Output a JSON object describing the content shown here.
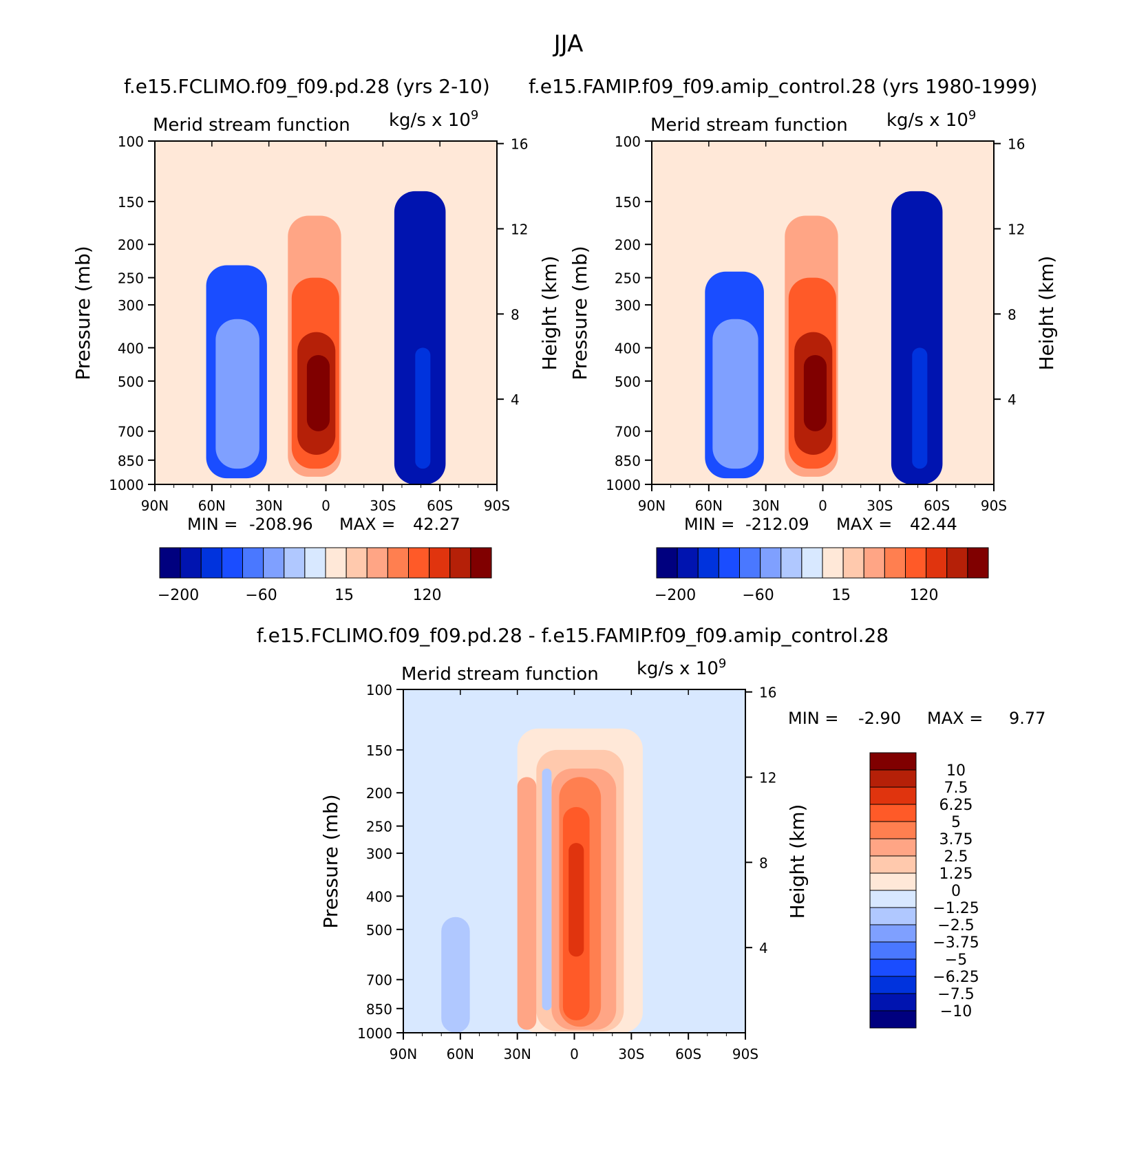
{
  "figure": {
    "title": "JJA",
    "min_label": "MIN =",
    "max_label": "MAX ="
  },
  "colors": {
    "main_scale": [
      "#00007f",
      "#0014b0",
      "#0033dd",
      "#1a4dff",
      "#4a78ff",
      "#7fa0ff",
      "#b0c8ff",
      "#d8e8ff",
      "#ffe8d8",
      "#ffc9ad",
      "#ffa585",
      "#ff7f50",
      "#ff5a28",
      "#e0340e",
      "#b52008",
      "#800000"
    ],
    "diff_scale": [
      "#00007f",
      "#0014b0",
      "#0033dd",
      "#1a4dff",
      "#4a78ff",
      "#7fa0ff",
      "#b0c8ff",
      "#d8e8ff",
      "#ffe8d8",
      "#ffc9ad",
      "#ffa585",
      "#ff7f50",
      "#ff5a28",
      "#e0340e",
      "#b52008",
      "#800000"
    ]
  },
  "chart_data": [
    {
      "type": "heatmap",
      "name": "control",
      "title": "f.e15.FCLIMO.f09_f09.pd.28 (yrs 2-10)",
      "subtitle": "Merid stream function",
      "units": "kg/s x 10",
      "units_exp": "9",
      "xlabel": "",
      "ylabel": "Pressure (mb)",
      "ylabel_right": "Height (km)",
      "x_ticks": [
        "90N",
        "60N",
        "30N",
        "0",
        "30S",
        "60S",
        "90S"
      ],
      "y_ticks": [
        "100",
        "150",
        "200",
        "250",
        "300",
        "400",
        "500",
        "700",
        "850",
        "1000"
      ],
      "y_right_ticks": [
        "16",
        "12",
        "8",
        "4"
      ],
      "xlim": [
        90,
        -90
      ],
      "ylim": [
        1000,
        100
      ],
      "min": "-208.96",
      "max": "42.27",
      "colorbar_labels": [
        "-200",
        "-60",
        "15",
        "120"
      ],
      "cells": [
        {
          "lat_range": [
            -10,
            22
          ],
          "p_range": [
            130,
            980
          ],
          "level": 8
        },
        {
          "lat_range": [
            -8,
            20
          ],
          "p_range": [
            165,
            950
          ],
          "level": 10
        },
        {
          "lat_range": [
            -7,
            18
          ],
          "p_range": [
            250,
            900
          ],
          "level": 12
        },
        {
          "lat_range": [
            -5,
            15
          ],
          "p_range": [
            360,
            820
          ],
          "level": 14
        },
        {
          "lat_range": [
            -2,
            10
          ],
          "p_range": [
            420,
            700
          ],
          "level": 15
        },
        {
          "lat_range": [
            31,
            63
          ],
          "p_range": [
            230,
            960
          ],
          "level": 3
        },
        {
          "lat_range": [
            35,
            58
          ],
          "p_range": [
            330,
            900
          ],
          "level": 5
        },
        {
          "lat_range": [
            -63,
            -36
          ],
          "p_range": [
            140,
            1000
          ],
          "level": 1
        },
        {
          "lat_range": [
            -55,
            -47
          ],
          "p_range": [
            400,
            900
          ],
          "level": 2
        }
      ]
    },
    {
      "type": "heatmap",
      "name": "amip",
      "title": "f.e15.FAMIP.f09_f09.amip_control.28 (yrs 1980-1999)",
      "subtitle": "Merid stream function",
      "units": "kg/s x 10",
      "units_exp": "9",
      "xlabel": "",
      "ylabel": "Pressure (mb)",
      "ylabel_right": "Height (km)",
      "x_ticks": [
        "90N",
        "60N",
        "30N",
        "0",
        "30S",
        "60S",
        "90S"
      ],
      "y_ticks": [
        "100",
        "150",
        "200",
        "250",
        "300",
        "400",
        "500",
        "700",
        "850",
        "1000"
      ],
      "y_right_ticks": [
        "16",
        "12",
        "8",
        "4"
      ],
      "xlim": [
        90,
        -90
      ],
      "ylim": [
        1000,
        100
      ],
      "min": "-212.09",
      "max": "42.44",
      "colorbar_labels": [
        "-200",
        "-60",
        "15",
        "120"
      ],
      "cells": [
        {
          "lat_range": [
            -10,
            22
          ],
          "p_range": [
            130,
            980
          ],
          "level": 8
        },
        {
          "lat_range": [
            -8,
            20
          ],
          "p_range": [
            165,
            950
          ],
          "level": 10
        },
        {
          "lat_range": [
            -7,
            18
          ],
          "p_range": [
            250,
            900
          ],
          "level": 12
        },
        {
          "lat_range": [
            -5,
            15
          ],
          "p_range": [
            360,
            820
          ],
          "level": 14
        },
        {
          "lat_range": [
            -2,
            10
          ],
          "p_range": [
            420,
            700
          ],
          "level": 15
        },
        {
          "lat_range": [
            31,
            62
          ],
          "p_range": [
            240,
            960
          ],
          "level": 3
        },
        {
          "lat_range": [
            34,
            58
          ],
          "p_range": [
            330,
            900
          ],
          "level": 5
        },
        {
          "lat_range": [
            -63,
            -36
          ],
          "p_range": [
            140,
            1000
          ],
          "level": 1
        },
        {
          "lat_range": [
            -55,
            -47
          ],
          "p_range": [
            400,
            900
          ],
          "level": 2
        }
      ]
    },
    {
      "type": "heatmap",
      "name": "difference",
      "title": "f.e15.FCLIMO.f09_f09.pd.28 - f.e15.FAMIP.f09_f09.amip_control.28",
      "subtitle": "Merid stream function",
      "units": "kg/s x 10",
      "units_exp": "9",
      "xlabel": "",
      "ylabel": "Pressure (mb)",
      "ylabel_right": "Height (km)",
      "x_ticks": [
        "90N",
        "60N",
        "30N",
        "0",
        "30S",
        "60S",
        "90S"
      ],
      "y_ticks": [
        "100",
        "150",
        "200",
        "250",
        "300",
        "400",
        "500",
        "700",
        "850",
        "1000"
      ],
      "y_right_ticks": [
        "16",
        "12",
        "8",
        "4"
      ],
      "xlim": [
        90,
        -90
      ],
      "ylim": [
        1000,
        100
      ],
      "min": "-2.90",
      "max": "9.77",
      "colorbar_labels": [
        "10",
        "7.5",
        "6.25",
        "5",
        "3.75",
        "2.5",
        "1.25",
        "0",
        "-1.25",
        "-2.5",
        "-3.75",
        "-5",
        "-6.25",
        "-7.5",
        "-10"
      ],
      "cells": [
        {
          "lat_range": [
            -36,
            30
          ],
          "p_range": [
            130,
            1000
          ],
          "level": 8
        },
        {
          "lat_range": [
            -26,
            20
          ],
          "p_range": [
            150,
            990
          ],
          "level": 9
        },
        {
          "lat_range": [
            -22,
            12
          ],
          "p_range": [
            170,
            980
          ],
          "level": 10
        },
        {
          "lat_range": [
            -14,
            8
          ],
          "p_range": [
            180,
            960
          ],
          "level": 11
        },
        {
          "lat_range": [
            -8,
            6
          ],
          "p_range": [
            220,
            920
          ],
          "level": 12
        },
        {
          "lat_range": [
            -5,
            3
          ],
          "p_range": [
            280,
            600
          ],
          "level": 13
        },
        {
          "lat_range": [
            20,
            30
          ],
          "p_range": [
            180,
            980
          ],
          "level": 10
        },
        {
          "lat_range": [
            12,
            17
          ],
          "p_range": [
            170,
            860
          ],
          "level": 6
        },
        {
          "lat_range": [
            55,
            70
          ],
          "p_range": [
            460,
            1000
          ],
          "level": 6
        }
      ]
    }
  ]
}
